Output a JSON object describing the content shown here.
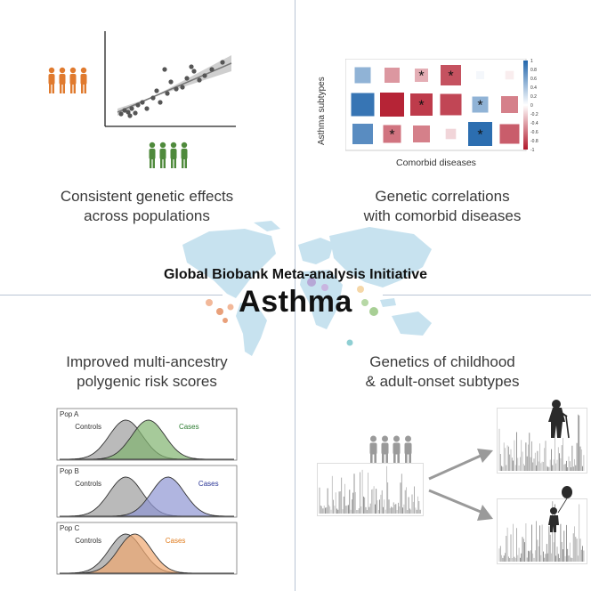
{
  "quadrants": {
    "top_left": {
      "caption_line1": "Consistent genetic effects",
      "caption_line2": "across populations"
    },
    "top_right": {
      "caption_line1": "Genetic correlations",
      "caption_line2": "with comorbid diseases",
      "y_axis_label": "Asthma subtypes",
      "x_axis_label": "Comorbid diseases"
    },
    "bottom_left": {
      "caption_line1": "Improved multi-ancestry",
      "caption_line2": "polygenic risk scores"
    },
    "bottom_right": {
      "caption_line1": "Genetics of childhood",
      "caption_line2": "& adult-onset subtypes"
    }
  },
  "center": {
    "title": "Global Biobank Meta-analysis Initiative",
    "main": "Asthma"
  },
  "heatmap": {
    "legend_ticks": [
      "1",
      "0.8",
      "0.6",
      "0.4",
      "0.2",
      "0",
      "-0.2",
      "-0.4",
      "-0.6",
      "-0.8",
      "-1"
    ],
    "cells": [
      [
        {
          "v": 0.5,
          "star": false
        },
        {
          "v": -0.45,
          "star": false
        },
        {
          "v": -0.35,
          "star": true
        },
        {
          "v": -0.75,
          "star": true
        },
        {
          "v": 0.05,
          "star": false
        },
        {
          "v": -0.08,
          "star": false
        }
      ],
      [
        {
          "v": 0.9,
          "star": false
        },
        {
          "v": -0.95,
          "star": false
        },
        {
          "v": -0.85,
          "star": true
        },
        {
          "v": -0.8,
          "star": false
        },
        {
          "v": 0.5,
          "star": true
        },
        {
          "v": -0.55,
          "star": false
        }
      ],
      [
        {
          "v": 0.75,
          "star": false
        },
        {
          "v": -0.6,
          "star": true
        },
        {
          "v": -0.55,
          "star": false
        },
        {
          "v": -0.18,
          "star": false
        },
        {
          "v": 0.95,
          "star": true
        },
        {
          "v": -0.7,
          "star": false
        }
      ]
    ]
  },
  "prs": {
    "panels": [
      {
        "label": "Pop A",
        "controls": "Controls",
        "cases": "Cases",
        "cases_color": "#2e7d32",
        "fill_color": "#80b36f",
        "shift": 0.75
      },
      {
        "label": "Pop B",
        "controls": "Controls",
        "cases": "Cases",
        "cases_color": "#2a3596",
        "fill_color": "#8f95d3",
        "shift": 1.4
      },
      {
        "label": "Pop C",
        "controls": "Controls",
        "cases": "Cases",
        "cases_color": "#e07b1c",
        "fill_color": "#f0a870",
        "shift": 0.3
      }
    ]
  },
  "colors": {
    "orange_people": "#e07a2e",
    "green_people": "#4f8a3c",
    "gray_people": "#9a9a9a",
    "map": "#c7e2ef"
  }
}
